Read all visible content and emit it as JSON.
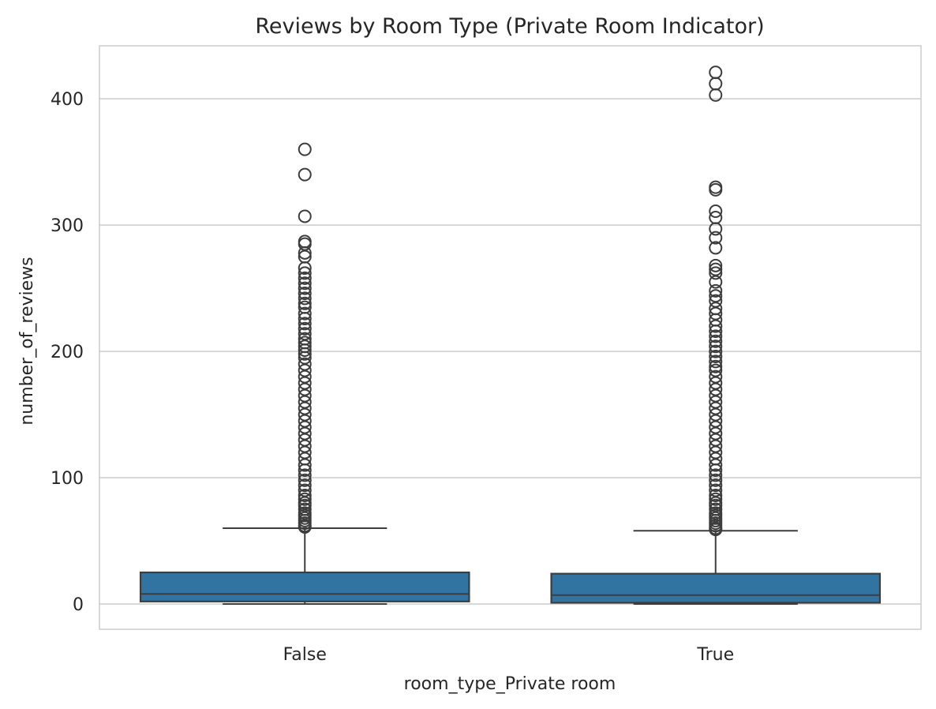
{
  "chart_data": {
    "type": "box",
    "title": "Reviews by Room Type (Private Room Indicator)",
    "xlabel": "room_type_Private room",
    "ylabel": "number_of_reviews",
    "ylim": [
      -20,
      442
    ],
    "yticks": [
      0,
      100,
      200,
      300,
      400
    ],
    "grid": true,
    "box_color": "#3274a1",
    "line_color": "#3d3d3d",
    "categories": [
      "False",
      "True"
    ],
    "boxes": [
      {
        "category": "False",
        "whisker_low": 0,
        "q1": 2,
        "median": 8,
        "q3": 25,
        "whisker_high": 60,
        "outliers": [
          61,
          62,
          64,
          66,
          68,
          70,
          72,
          75,
          78,
          80,
          83,
          86,
          90,
          94,
          98,
          102,
          106,
          110,
          115,
          120,
          125,
          130,
          135,
          140,
          145,
          150,
          155,
          160,
          165,
          170,
          175,
          180,
          185,
          190,
          195,
          198,
          201,
          204,
          207,
          210,
          214,
          218,
          222,
          226,
          230,
          235,
          238,
          242,
          246,
          250,
          254,
          258,
          262,
          266,
          275,
          278,
          285,
          287,
          307,
          340,
          360
        ]
      },
      {
        "category": "True",
        "whisker_low": 0,
        "q1": 1,
        "median": 7,
        "q3": 24,
        "whisker_high": 58,
        "outliers": [
          59,
          60,
          62,
          64,
          66,
          68,
          70,
          72,
          75,
          78,
          80,
          83,
          86,
          90,
          94,
          98,
          102,
          106,
          110,
          115,
          120,
          125,
          130,
          135,
          140,
          145,
          150,
          155,
          160,
          165,
          170,
          175,
          180,
          185,
          188,
          192,
          196,
          200,
          204,
          208,
          212,
          216,
          220,
          225,
          230,
          234,
          240,
          244,
          248,
          255,
          262,
          265,
          268,
          282,
          290,
          297,
          306,
          311,
          328,
          330,
          403,
          412,
          421
        ]
      }
    ]
  }
}
